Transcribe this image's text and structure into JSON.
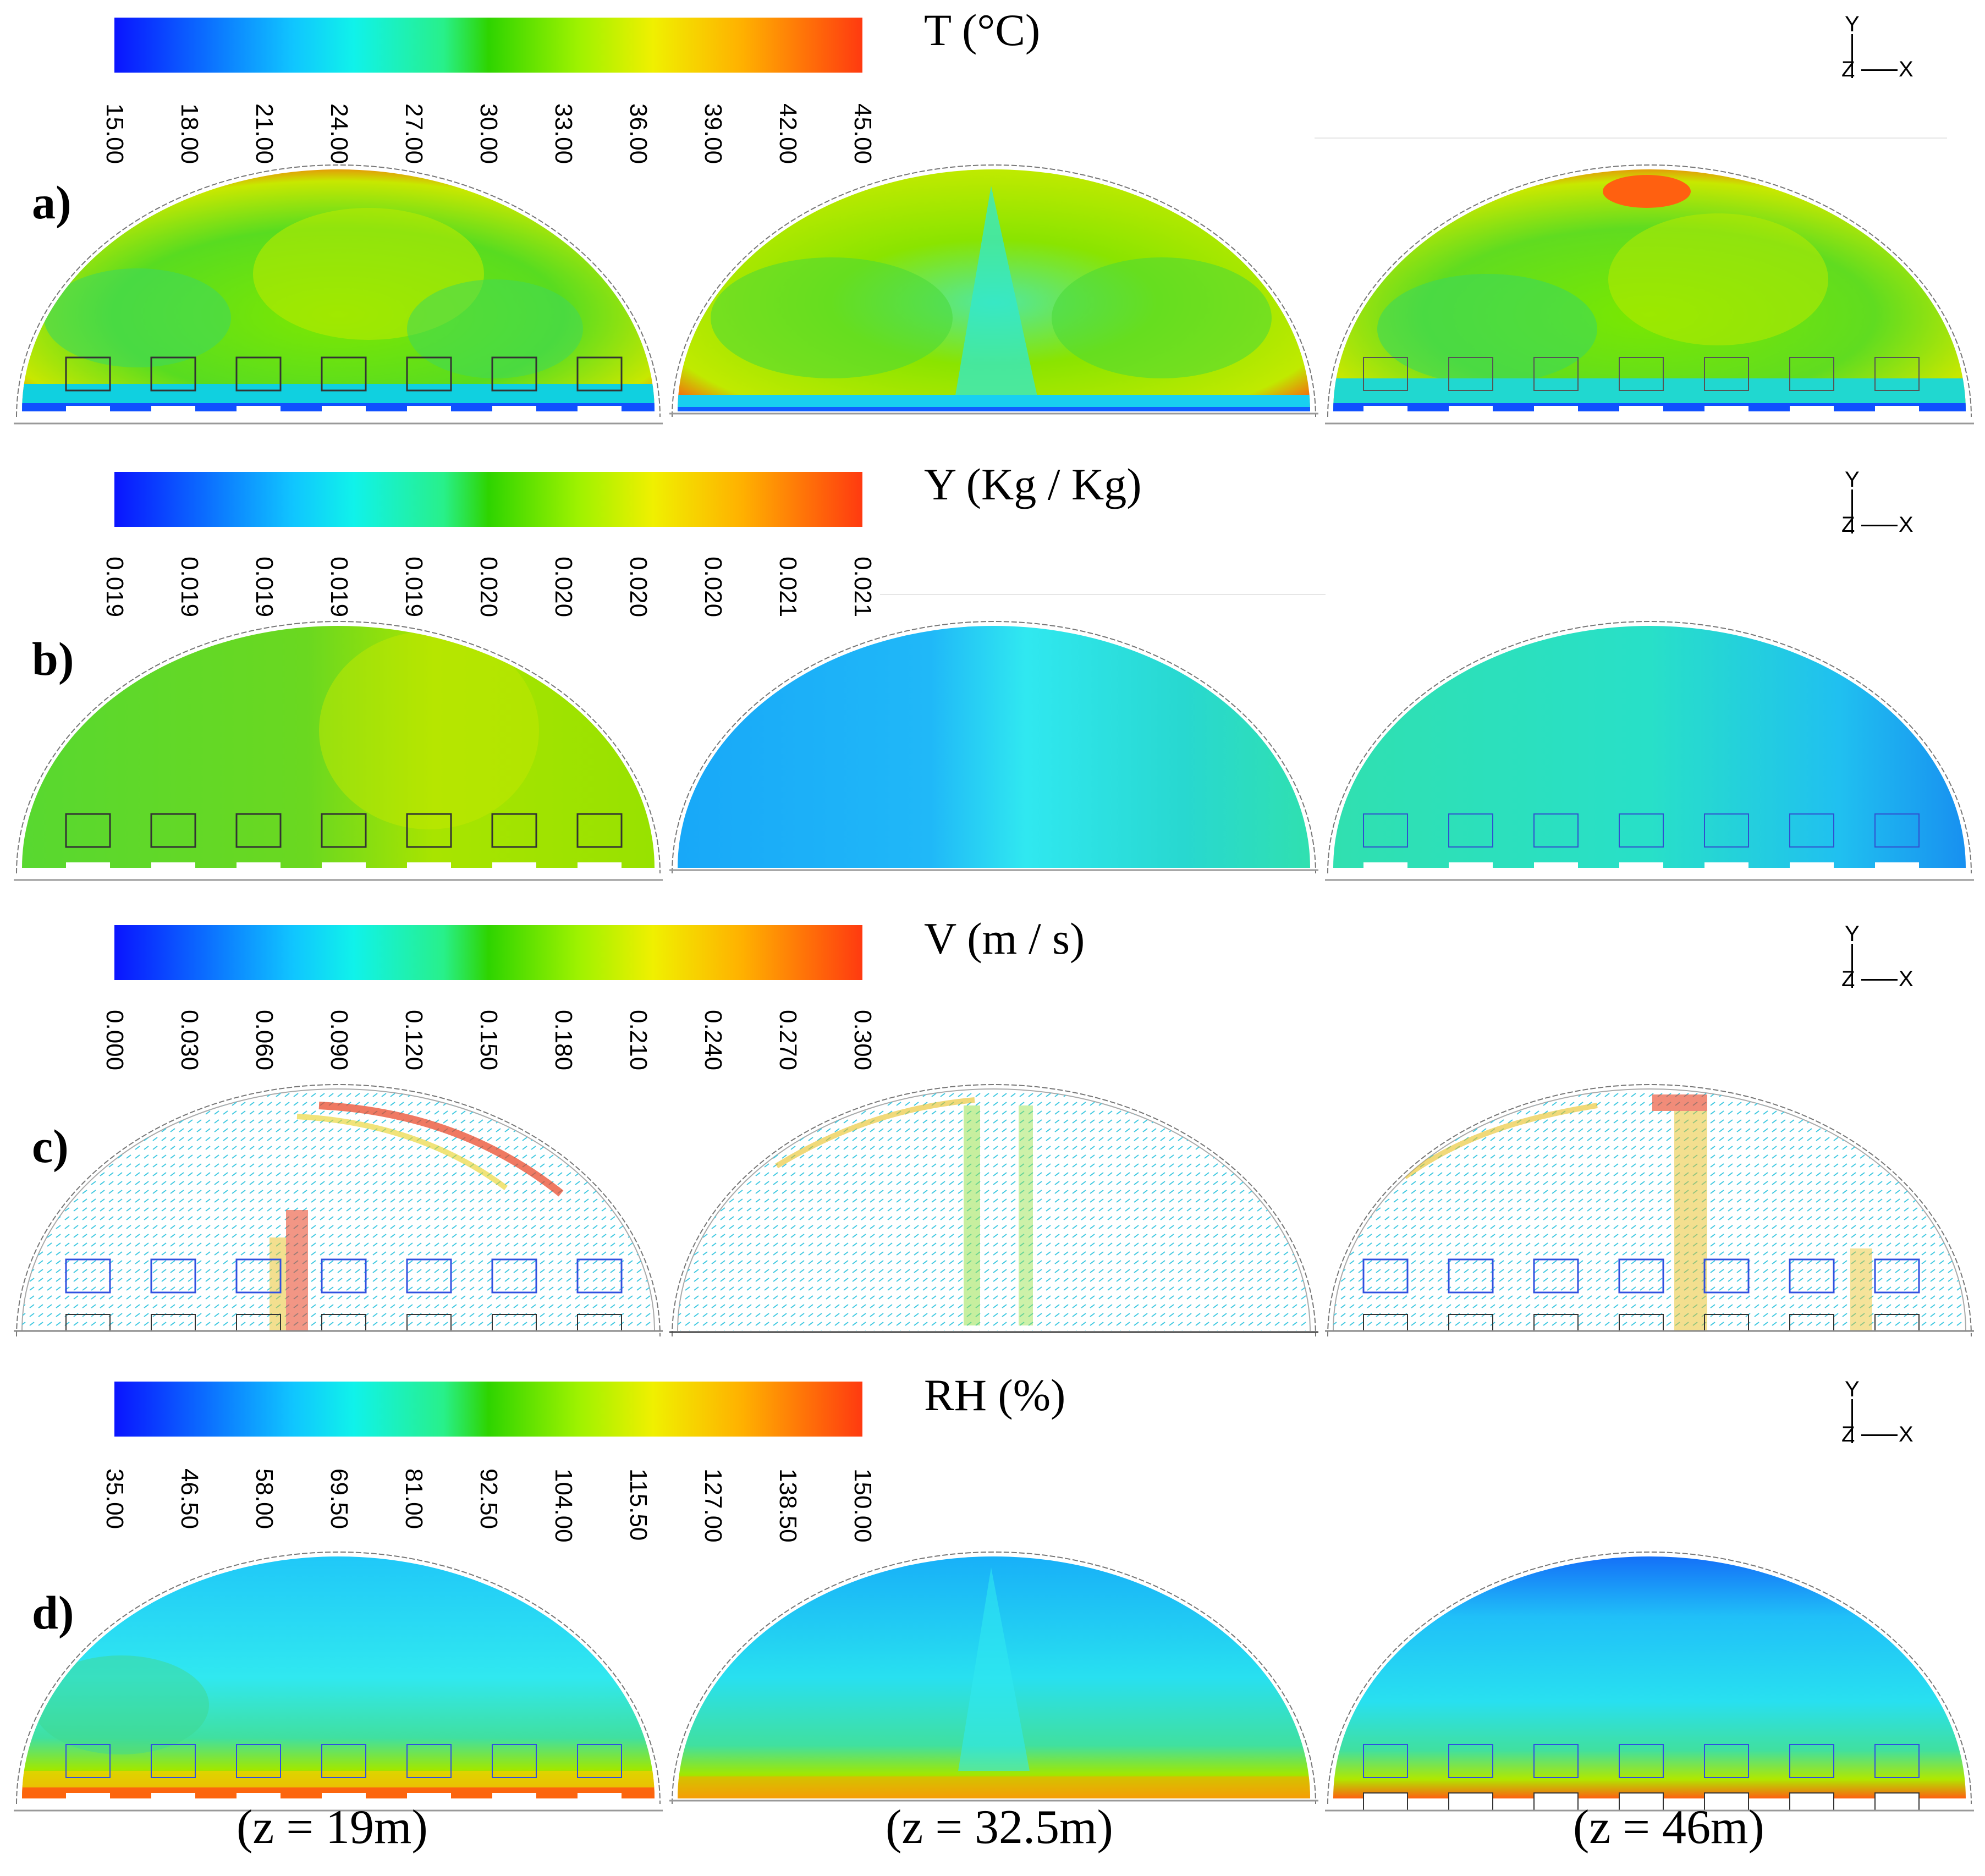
{
  "rows": [
    {
      "row_label": "a)",
      "variable": "T  (°C)",
      "ticks": [
        "15.00",
        "18.00",
        "21.00",
        "24.00",
        "27.00",
        "30.00",
        "33.00",
        "36.00",
        "39.00",
        "42.00",
        "45.00"
      ]
    },
    {
      "row_label": "b)",
      "variable": "Y  (Kg / Kg)",
      "ticks": [
        "0.019",
        "0.019",
        "0.019",
        "0.019",
        "0.019",
        "0.020",
        "0.020",
        "0.020",
        "0.020",
        "0.021",
        "0.021"
      ]
    },
    {
      "row_label": "c)",
      "variable": "V  (m / s)",
      "ticks": [
        "0.000",
        "0.030",
        "0.060",
        "0.090",
        "0.120",
        "0.150",
        "0.180",
        "0.210",
        "0.240",
        "0.270",
        "0.300"
      ]
    },
    {
      "row_label": "d)",
      "variable": "RH  (%)",
      "ticks": [
        "35.00",
        "46.50",
        "58.00",
        "69.50",
        "81.00",
        "92.50",
        "104.00",
        "115.50",
        "127.00",
        "138.50",
        "150.00"
      ]
    }
  ],
  "axis": {
    "y": "Y",
    "z": "Z",
    "x": "X"
  },
  "sections": [
    "(z = 19m)",
    "(z = 32.5m)",
    "(z = 46m)"
  ],
  "colors": {
    "blue": "#0a14ff",
    "cyan": "#10f2ea",
    "green": "#2ed400",
    "yellow": "#f0f000",
    "red": "#ff3a10"
  }
}
